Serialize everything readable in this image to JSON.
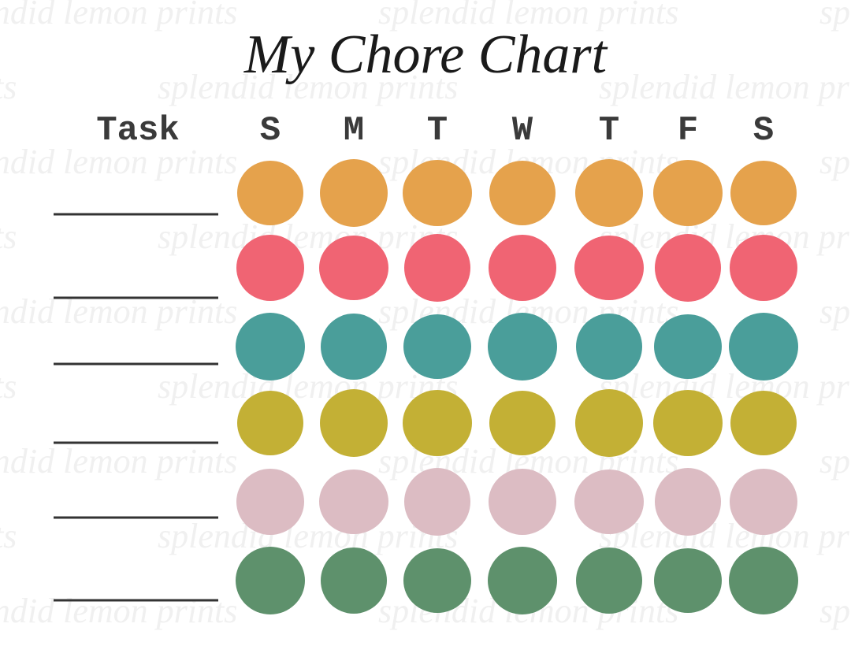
{
  "title": "My Chore Chart",
  "header": {
    "task": "Task",
    "days": [
      "S",
      "M",
      "T",
      "W",
      "T",
      "F",
      "S"
    ]
  },
  "watermark": "splendid lemon prints",
  "rows": [
    {
      "color": "#e5a24c"
    },
    {
      "color": "#f06473"
    },
    {
      "color": "#4a9e9a"
    },
    {
      "color": "#c3b035"
    },
    {
      "color": "#dcbcc3"
    },
    {
      "color": "#5e916c"
    }
  ]
}
